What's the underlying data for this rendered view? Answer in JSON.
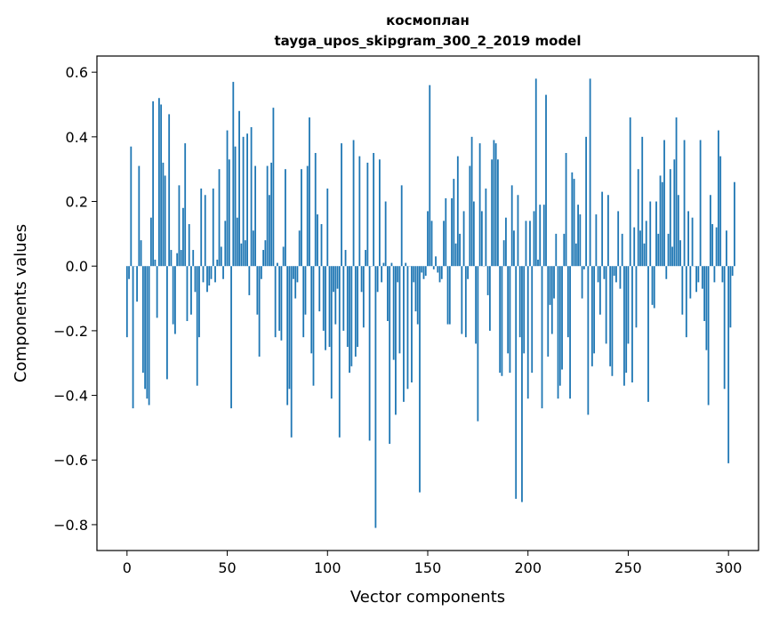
{
  "chart_data": {
    "type": "bar",
    "title": "космоплан",
    "subtitle": "tayga_upos_skipgram_300_2_2019 model",
    "xlabel": "Vector components",
    "ylabel": "Components values",
    "xlim": [
      -15,
      315
    ],
    "ylim": [
      -0.88,
      0.65
    ],
    "xticks": [
      0,
      50,
      100,
      150,
      200,
      250,
      300
    ],
    "xtick_labels": [
      "0",
      "50",
      "100",
      "150",
      "200",
      "250",
      "300"
    ],
    "yticks": [
      -0.8,
      -0.6,
      -0.4,
      -0.2,
      0.0,
      0.2,
      0.4,
      0.6
    ],
    "ytick_labels": [
      "−0.8",
      "−0.6",
      "−0.4",
      "−0.2",
      "0.0",
      "0.2",
      "0.4",
      "0.6"
    ],
    "grid": false,
    "bar_color": "#1f77b4",
    "series": [
      {
        "values": [
          -0.22,
          -0.04,
          0.37,
          -0.44,
          0.0,
          -0.11,
          0.31,
          0.08,
          -0.33,
          -0.38,
          -0.41,
          -0.43,
          0.15,
          0.51,
          0.02,
          -0.16,
          0.52,
          0.5,
          0.32,
          0.28,
          -0.35,
          0.47,
          0.05,
          -0.18,
          -0.21,
          0.04,
          0.25,
          0.05,
          0.18,
          0.38,
          -0.17,
          0.13,
          -0.15,
          0.05,
          -0.08,
          -0.37,
          -0.22,
          0.24,
          -0.05,
          0.22,
          -0.08,
          -0.06,
          -0.04,
          0.24,
          -0.05,
          0.02,
          0.3,
          0.06,
          -0.04,
          0.14,
          0.42,
          0.33,
          -0.44,
          0.57,
          0.37,
          0.15,
          0.48,
          0.07,
          0.4,
          0.08,
          0.41,
          -0.09,
          0.43,
          0.11,
          0.31,
          -0.15,
          -0.28,
          -0.04,
          0.05,
          0.08,
          0.31,
          0.22,
          0.32,
          0.49,
          -0.22,
          0.01,
          -0.2,
          -0.23,
          0.06,
          0.3,
          -0.43,
          -0.38,
          -0.53,
          -0.04,
          -0.1,
          -0.05,
          0.11,
          0.3,
          -0.22,
          -0.15,
          0.31,
          0.46,
          -0.27,
          -0.37,
          0.35,
          0.16,
          -0.14,
          0.13,
          -0.2,
          -0.26,
          0.24,
          -0.25,
          -0.41,
          -0.08,
          -0.18,
          -0.07,
          -0.53,
          0.38,
          -0.2,
          0.05,
          -0.25,
          -0.33,
          -0.31,
          0.39,
          -0.28,
          -0.25,
          0.34,
          -0.08,
          -0.19,
          0.05,
          0.32,
          -0.54,
          0.0,
          0.35,
          -0.81,
          -0.08,
          0.33,
          -0.05,
          0.01,
          0.2,
          -0.17,
          -0.55,
          0.01,
          -0.29,
          -0.46,
          -0.05,
          -0.27,
          0.25,
          -0.42,
          0.01,
          -0.38,
          0.0,
          -0.36,
          -0.05,
          -0.14,
          -0.18,
          -0.7,
          -0.02,
          -0.04,
          -0.03,
          0.17,
          0.56,
          0.14,
          -0.01,
          0.03,
          -0.02,
          -0.05,
          -0.04,
          0.14,
          0.21,
          -0.18,
          -0.18,
          0.21,
          0.27,
          0.07,
          0.34,
          0.1,
          -0.21,
          0.17,
          -0.22,
          -0.04,
          0.31,
          0.4,
          0.2,
          -0.24,
          -0.48,
          0.38,
          0.17,
          0.0,
          0.24,
          -0.09,
          -0.2,
          0.33,
          0.39,
          0.38,
          0.33,
          -0.33,
          -0.34,
          0.08,
          0.15,
          -0.27,
          -0.33,
          0.25,
          0.11,
          -0.72,
          0.22,
          -0.22,
          -0.73,
          -0.27,
          0.14,
          -0.41,
          0.14,
          -0.33,
          0.17,
          0.58,
          0.02,
          0.19,
          -0.44,
          0.19,
          0.53,
          -0.28,
          -0.12,
          -0.21,
          -0.1,
          0.1,
          -0.41,
          -0.37,
          -0.32,
          0.1,
          0.35,
          -0.22,
          -0.41,
          0.29,
          0.27,
          0.07,
          0.19,
          0.16,
          -0.1,
          -0.01,
          0.4,
          -0.46,
          0.58,
          -0.31,
          -0.27,
          0.16,
          -0.05,
          -0.15,
          0.23,
          -0.04,
          -0.24,
          0.22,
          -0.31,
          -0.34,
          -0.03,
          -0.05,
          0.17,
          -0.07,
          0.1,
          -0.37,
          -0.33,
          -0.24,
          0.46,
          -0.36,
          0.12,
          -0.19,
          0.3,
          0.11,
          0.4,
          0.07,
          0.14,
          -0.42,
          0.2,
          -0.12,
          -0.13,
          0.2,
          0.1,
          0.28,
          0.26,
          0.39,
          -0.04,
          0.1,
          0.3,
          0.06,
          0.33,
          0.46,
          0.22,
          0.08,
          -0.15,
          0.39,
          -0.22,
          0.17,
          -0.1,
          0.15,
          0.0,
          -0.08,
          -0.05,
          0.39,
          -0.07,
          -0.17,
          -0.26,
          -0.43,
          0.22,
          0.13,
          -0.05,
          0.12,
          0.42,
          0.34,
          -0.05,
          -0.38,
          0.11,
          -0.61,
          -0.19,
          -0.03,
          0.26
        ]
      }
    ]
  }
}
